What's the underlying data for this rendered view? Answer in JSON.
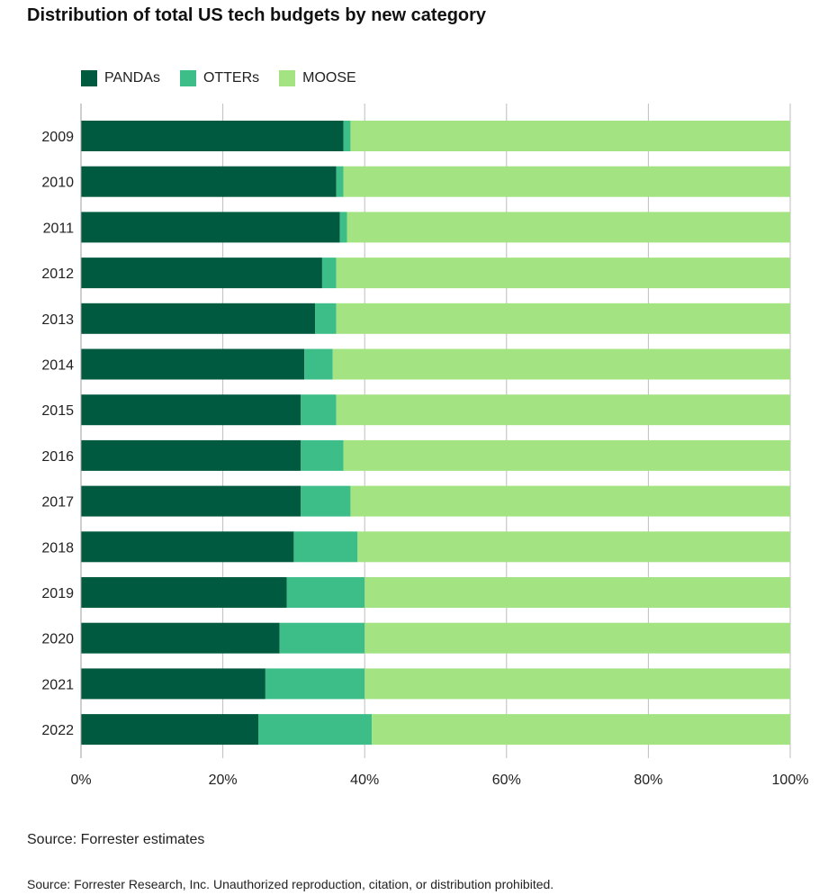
{
  "colors": {
    "pandas": "#005a3f",
    "otters": "#3dbd87",
    "moose": "#a3e382",
    "grid": "#bdbdbd"
  },
  "chart_data": {
    "type": "bar",
    "orientation": "horizontal",
    "stacked": true,
    "title": "Distribution of total US tech budgets by new category",
    "categories": [
      "2009",
      "2010",
      "2011",
      "2012",
      "2013",
      "2014",
      "2015",
      "2016",
      "2017",
      "2018",
      "2019",
      "2020",
      "2021",
      "2022"
    ],
    "series": [
      {
        "name": "PANDAs",
        "values": [
          37,
          36,
          36.5,
          34,
          33,
          31.5,
          31,
          31,
          31,
          30,
          29,
          28,
          26,
          25
        ]
      },
      {
        "name": "OTTERs",
        "values": [
          1,
          1,
          1,
          2,
          3,
          4,
          5,
          6,
          7,
          9,
          11,
          12,
          14,
          16
        ]
      },
      {
        "name": "MOOSE",
        "values": [
          62,
          63,
          62.5,
          64,
          64,
          64.5,
          64,
          63,
          62,
          61,
          60,
          60,
          60,
          59
        ]
      }
    ],
    "xlim": [
      0,
      100
    ],
    "xticks": [
      0,
      20,
      40,
      60,
      80,
      100
    ],
    "xtick_labels": [
      "0%",
      "20%",
      "40%",
      "60%",
      "80%",
      "100%"
    ],
    "grid": true,
    "legend_position": "top-left"
  },
  "notes": {
    "source": "Source: Forrester estimates",
    "copyright": "Source: Forrester Research, Inc. Unauthorized reproduction, citation, or distribution prohibited."
  }
}
